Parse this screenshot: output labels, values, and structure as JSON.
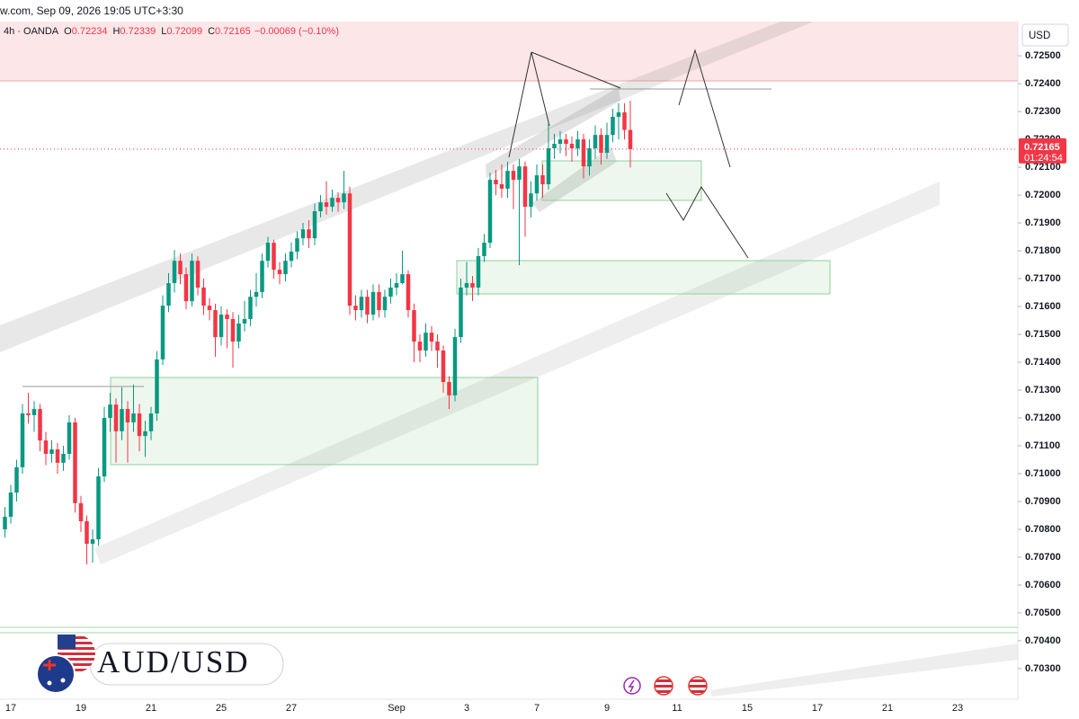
{
  "chart_data": {
    "type": "candlestick",
    "source_line": "w.com, Sep 09, 2026 19:05 UTC+3:30",
    "legend_title": "4h · OANDA",
    "legend": [
      {
        "label": "O",
        "value": 0.72234
      },
      {
        "label": "H",
        "value": 0.72339
      },
      {
        "label": "L",
        "value": 0.72099
      },
      {
        "label": "C",
        "value": 0.72165
      }
    ],
    "change": "−0.00069 (−0.10%)",
    "currency": "USD",
    "symbol": "AUD/USD",
    "last_price": 0.72165,
    "countdown": "01:24:54",
    "up_color": "#089981",
    "down_color": "#f23645",
    "grid": false,
    "ylim": [
      0.7019,
      0.72623
    ],
    "yticks": [
      {
        "value": 0.725,
        "label": "0.72500"
      },
      {
        "value": 0.724,
        "label": "0.72400"
      },
      {
        "value": 0.723,
        "label": "0.72300"
      },
      {
        "value": 0.722,
        "label": "0.72200"
      },
      {
        "value": 0.721,
        "label": "0.72100"
      },
      {
        "value": 0.72,
        "label": "0.72000"
      },
      {
        "value": 0.719,
        "label": "0.71900"
      },
      {
        "value": 0.718,
        "label": "0.71800"
      },
      {
        "value": 0.717,
        "label": "0.71700"
      },
      {
        "value": 0.716,
        "label": "0.71600"
      },
      {
        "value": 0.715,
        "label": "0.71500"
      },
      {
        "value": 0.714,
        "label": "0.71400"
      },
      {
        "value": 0.713,
        "label": "0.71300"
      },
      {
        "value": 0.712,
        "label": "0.71200"
      },
      {
        "value": 0.711,
        "label": "0.71100"
      },
      {
        "value": 0.71,
        "label": "0.71000"
      },
      {
        "value": 0.709,
        "label": "0.70900"
      },
      {
        "value": 0.708,
        "label": "0.70800"
      },
      {
        "value": 0.707,
        "label": "0.70700"
      },
      {
        "value": 0.706,
        "label": "0.70600"
      },
      {
        "value": 0.705,
        "label": "0.70500"
      },
      {
        "value": 0.704,
        "label": "0.70400"
      },
      {
        "value": 0.703,
        "label": "0.70300"
      }
    ],
    "categories": [
      null,
      "17",
      null,
      null,
      null,
      null,
      null,
      null,
      null,
      null,
      null,
      null,
      null,
      "19",
      null,
      null,
      null,
      null,
      null,
      null,
      null,
      null,
      null,
      null,
      null,
      "21",
      null,
      null,
      null,
      null,
      null,
      null,
      null,
      null,
      null,
      null,
      null,
      "25",
      null,
      null,
      null,
      null,
      null,
      null,
      null,
      null,
      null,
      null,
      null,
      "27",
      null,
      null,
      null,
      null,
      null,
      null,
      null,
      null,
      null,
      null,
      null,
      null,
      null,
      null,
      null,
      null,
      null,
      "Sep",
      null,
      null,
      null,
      null,
      null,
      null,
      null,
      null,
      null,
      null,
      null,
      "3",
      null,
      null,
      null,
      null,
      null,
      null,
      null,
      null,
      null,
      null,
      null,
      "7",
      null,
      null,
      null,
      null,
      null,
      null,
      null,
      null,
      null,
      null,
      null,
      "9",
      null,
      null,
      null,
      null,
      null,
      null,
      null,
      null,
      null,
      null,
      null,
      "11",
      null,
      null,
      null,
      null,
      null,
      null,
      null,
      null,
      null,
      null,
      null,
      "15",
      null,
      null,
      null,
      null,
      null,
      null,
      null,
      null,
      null,
      null,
      null,
      "17",
      null,
      null,
      null,
      null,
      null,
      null,
      null,
      null,
      null,
      null,
      null,
      "21",
      null,
      null,
      null,
      null,
      null,
      null,
      null,
      null,
      null,
      null,
      null,
      "23"
    ],
    "open": [
      0.708,
      0.70845,
      0.70932,
      0.71023,
      0.71216,
      0.7121,
      0.71232,
      0.71119,
      0.71071,
      0.71087,
      0.71039,
      0.71071,
      0.71184,
      0.70894,
      0.70829,
      0.70748,
      0.70764,
      0.7099,
      0.712,
      0.71248,
      0.71152,
      0.71232,
      0.71184,
      0.71216,
      0.71135,
      0.71152,
      0.71216,
      0.7141,
      0.71603,
      0.71684,
      0.71764,
      0.71716,
      0.71619,
      0.71764,
      0.71668,
      0.71603,
      0.71587,
      0.7149,
      0.71571,
      0.71555,
      0.71474,
      0.71539,
      0.71555,
      0.71635,
      0.71652,
      0.71764,
      0.71829,
      0.71732,
      0.71716,
      0.71764,
      0.71797,
      0.71845,
      0.71877,
      0.71845,
      0.71942,
      0.71974,
      0.71958,
      0.7199,
      0.71974,
      0.72006,
      0.71603,
      0.71587,
      0.71635,
      0.71571,
      0.71652,
      0.71587,
      0.71635,
      0.71668,
      0.71684,
      0.71716,
      0.71587,
      0.71474,
      0.71442,
      0.71506,
      0.71474,
      0.71442,
      0.71329,
      0.71281,
      0.7149,
      0.71668,
      0.71684,
      0.71668,
      0.71781,
      0.71829,
      0.72055,
      0.72039,
      0.72023,
      0.72087,
      0.72055,
      0.72103,
      0.71958,
      0.72006,
      0.72071,
      0.72039,
      0.72168,
      0.72184,
      0.722,
      0.72184,
      0.72168,
      0.722,
      0.72103,
      0.72168,
      0.72216,
      0.72152,
      0.72216,
      0.72281,
      0.72297,
      0.72234,
      null,
      null,
      null,
      null,
      null,
      null,
      null,
      null,
      null,
      null,
      null,
      null,
      null,
      null,
      null,
      null,
      null,
      null,
      null,
      null,
      null,
      null,
      null,
      null,
      null,
      null,
      null,
      null,
      null,
      null,
      null,
      null,
      null,
      null,
      null,
      null,
      null,
      null,
      null,
      null,
      null,
      null,
      null,
      null,
      null,
      null,
      null,
      null,
      null,
      null,
      null,
      null,
      null,
      null,
      null,
      null
    ],
    "high": [
      0.7088,
      0.7096,
      0.7105,
      0.7125,
      0.7129,
      0.7126,
      0.7125,
      0.7115,
      0.7112,
      0.7111,
      0.711,
      0.7121,
      0.712,
      0.7092,
      0.7085,
      0.708,
      0.7102,
      0.7124,
      0.7129,
      0.7127,
      0.7131,
      0.7126,
      0.7132,
      0.7125,
      0.7119,
      0.7124,
      0.7144,
      0.7164,
      0.7172,
      0.71803,
      0.7179,
      0.7174,
      0.7179,
      0.7178,
      0.717,
      0.7163,
      0.7161,
      0.716,
      0.7159,
      0.7158,
      0.7157,
      0.7162,
      0.7166,
      0.7172,
      0.7179,
      0.7185,
      0.7184,
      0.7176,
      0.7179,
      0.7183,
      0.7187,
      0.719,
      0.7191,
      0.7197,
      0.72,
      0.7205,
      0.7202,
      0.7201,
      0.72087,
      0.7203,
      0.7164,
      0.7166,
      0.7166,
      0.7168,
      0.7168,
      0.7166,
      0.717,
      0.7172,
      0.718,
      0.7173,
      0.7161,
      0.715,
      0.7154,
      0.7153,
      0.715,
      0.7146,
      0.7135,
      0.7152,
      0.717,
      0.7176,
      0.7171,
      0.7181,
      0.7186,
      0.7208,
      0.7209,
      0.7211,
      0.7212,
      0.7211,
      0.7213,
      0.7212,
      0.7205,
      0.7211,
      0.7211,
      0.7226,
      0.7222,
      0.7223,
      0.7222,
      0.7221,
      0.7223,
      0.7222,
      0.722,
      0.7225,
      0.7224,
      0.7226,
      0.7231,
      0.7233,
      0.7233,
      0.72339,
      null,
      null,
      null,
      null,
      null,
      null,
      null,
      null,
      null,
      null,
      null,
      null,
      null,
      null,
      null,
      null,
      null,
      null,
      null,
      null,
      null,
      null,
      null,
      null,
      null,
      null,
      null,
      null,
      null,
      null,
      null,
      null,
      null,
      null,
      null,
      null,
      null,
      null,
      null,
      null,
      null,
      null,
      null,
      null,
      null,
      null,
      null,
      null,
      null,
      null,
      null,
      null,
      null,
      null,
      null,
      null
    ],
    "low": [
      0.7077,
      0.7082,
      0.709,
      0.71,
      0.7118,
      0.7115,
      0.7108,
      0.7103,
      0.7104,
      0.71,
      0.7101,
      0.7105,
      0.7086,
      0.7079,
      0.70674,
      0.7068,
      0.7074,
      0.7097,
      0.7115,
      0.7104,
      0.7112,
      0.7104,
      0.7115,
      0.7108,
      0.7106,
      0.7112,
      0.7119,
      0.7139,
      0.7158,
      0.7165,
      0.7168,
      0.7159,
      0.716,
      0.7164,
      0.7157,
      0.7155,
      0.7142,
      0.7146,
      0.7145,
      0.7138,
      0.7145,
      0.7151,
      0.7153,
      0.716,
      0.7163,
      0.7174,
      0.717,
      0.7168,
      0.7169,
      0.7174,
      0.7177,
      0.7182,
      0.7181,
      0.7182,
      0.7192,
      0.7193,
      0.7194,
      0.7194,
      0.7195,
      0.7157,
      0.7155,
      0.7156,
      0.7154,
      0.7155,
      0.7156,
      0.7156,
      0.7161,
      0.7164,
      0.7168,
      0.7156,
      0.714,
      0.714,
      0.7142,
      0.7144,
      0.7138,
      0.7129,
      0.71232,
      0.7126,
      0.7147,
      0.7164,
      0.7162,
      0.7164,
      0.7176,
      0.7181,
      0.72,
      0.7199,
      0.7199,
      0.7195,
      0.71748,
      0.7185,
      0.7192,
      0.7198,
      0.7199,
      0.7202,
      0.7213,
      0.7215,
      0.7214,
      0.7212,
      0.7214,
      0.7206,
      0.7207,
      0.7213,
      0.7211,
      0.7213,
      0.7219,
      0.722,
      0.722,
      0.72099,
      null,
      null,
      null,
      null,
      null,
      null,
      null,
      null,
      null,
      null,
      null,
      null,
      null,
      null,
      null,
      null,
      null,
      null,
      null,
      null,
      null,
      null,
      null,
      null,
      null,
      null,
      null,
      null,
      null,
      null,
      null,
      null,
      null,
      null,
      null,
      null,
      null,
      null,
      null,
      null,
      null,
      null,
      null,
      null,
      null,
      null,
      null,
      null,
      null,
      null,
      null,
      null,
      null,
      null,
      null,
      null
    ],
    "close": [
      0.70845,
      0.70932,
      0.71023,
      0.71216,
      0.7121,
      0.71232,
      0.71119,
      0.71071,
      0.71087,
      0.71039,
      0.71071,
      0.71184,
      0.70894,
      0.70829,
      0.70748,
      0.70764,
      0.7099,
      0.712,
      0.71248,
      0.71152,
      0.71232,
      0.71184,
      0.71216,
      0.71135,
      0.71152,
      0.71216,
      0.7141,
      0.71603,
      0.71684,
      0.71764,
      0.71716,
      0.71619,
      0.71764,
      0.71668,
      0.71603,
      0.71587,
      0.7149,
      0.71571,
      0.71555,
      0.71474,
      0.71539,
      0.71555,
      0.71635,
      0.71652,
      0.71764,
      0.71829,
      0.71732,
      0.71716,
      0.71764,
      0.71797,
      0.71845,
      0.71877,
      0.71845,
      0.71942,
      0.71974,
      0.71958,
      0.7199,
      0.71974,
      0.72006,
      0.71603,
      0.71587,
      0.71635,
      0.71571,
      0.71652,
      0.71587,
      0.71635,
      0.71668,
      0.71684,
      0.71716,
      0.71587,
      0.71474,
      0.71442,
      0.71506,
      0.71474,
      0.71442,
      0.71329,
      0.71281,
      0.7149,
      0.71668,
      0.71684,
      0.71668,
      0.71781,
      0.71829,
      0.72055,
      0.72039,
      0.72023,
      0.72087,
      0.72055,
      0.72103,
      0.71958,
      0.72006,
      0.72071,
      0.72039,
      0.72168,
      0.72184,
      0.722,
      0.72184,
      0.72168,
      0.722,
      0.72103,
      0.72168,
      0.72216,
      0.72152,
      0.72216,
      0.72281,
      0.72297,
      0.72234,
      0.72165,
      null,
      null,
      null,
      null,
      null,
      null,
      null,
      null,
      null,
      null,
      null,
      null,
      null,
      null,
      null,
      null,
      null,
      null,
      null,
      null,
      null,
      null,
      null,
      null,
      null,
      null,
      null,
      null,
      null,
      null,
      null,
      null,
      null,
      null,
      null,
      null,
      null,
      null,
      null,
      null,
      null,
      null,
      null,
      null,
      null,
      null,
      null,
      null,
      null,
      null,
      null,
      null,
      null,
      null,
      null,
      null
    ]
  }
}
